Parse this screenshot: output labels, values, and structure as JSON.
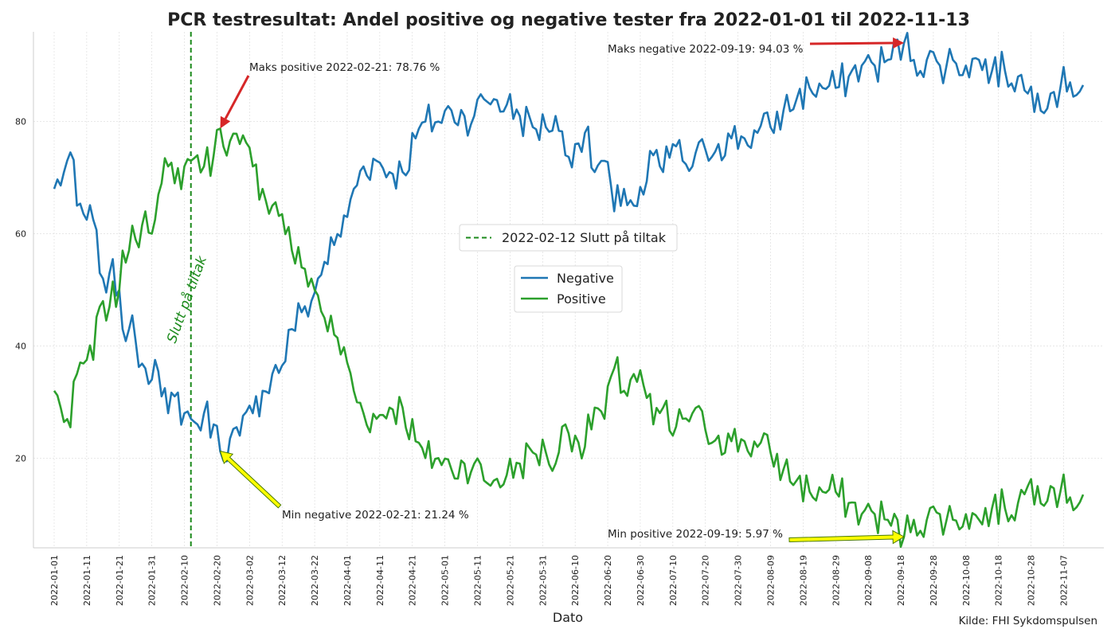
{
  "chart_data": {
    "type": "line",
    "title": "PCR testresultat: Andel positive og negative tester fra 2022-01-01 til 2022-11-13",
    "xlabel": "Dato",
    "ylabel": "",
    "x_range": [
      "2022-01-01",
      "2022-11-13"
    ],
    "ylim": [
      4,
      96
    ],
    "y_ticks": [
      20,
      40,
      60,
      80
    ],
    "x_ticks": [
      "2022-01-01",
      "2022-01-11",
      "2022-01-21",
      "2022-01-31",
      "2022-02-10",
      "2022-02-20",
      "2022-03-02",
      "2022-03-12",
      "2022-03-22",
      "2022-04-01",
      "2022-04-11",
      "2022-04-21",
      "2022-05-01",
      "2022-05-11",
      "2022-05-21",
      "2022-05-31",
      "2022-06-10",
      "2022-06-20",
      "2022-06-30",
      "2022-07-10",
      "2022-07-20",
      "2022-07-30",
      "2022-08-09",
      "2022-08-19",
      "2022-08-29",
      "2022-09-08",
      "2022-09-18",
      "2022-09-28",
      "2022-10-08",
      "2022-10-18",
      "2022-10-28",
      "2022-11-07"
    ],
    "grid": true,
    "legend_placement": "center",
    "source": "Kilde: FHI Sykdomspulsen",
    "series": [
      {
        "name": "Negative",
        "color": "#1f77b4",
        "key": "negative"
      },
      {
        "name": "Positive",
        "color": "#2ca02c",
        "key": "positive"
      }
    ],
    "anchors": {
      "negative": [
        [
          "2022-01-01",
          68
        ],
        [
          "2022-01-04",
          71
        ],
        [
          "2022-01-06",
          74.5
        ],
        [
          "2022-01-08",
          65
        ],
        [
          "2022-01-11",
          62.5
        ],
        [
          "2022-01-13",
          62.5
        ],
        [
          "2022-01-15",
          53
        ],
        [
          "2022-01-16",
          52
        ],
        [
          "2022-01-18",
          53
        ],
        [
          "2022-01-21",
          50
        ],
        [
          "2022-01-22",
          43
        ],
        [
          "2022-01-24",
          43
        ],
        [
          "2022-01-26",
          41
        ],
        [
          "2022-01-29",
          36
        ],
        [
          "2022-02-01",
          37.5
        ],
        [
          "2022-02-03",
          31
        ],
        [
          "2022-02-05",
          28
        ],
        [
          "2022-02-07",
          31
        ],
        [
          "2022-02-10",
          28
        ],
        [
          "2022-02-12",
          27
        ],
        [
          "2022-02-14",
          26
        ],
        [
          "2022-02-16",
          28
        ],
        [
          "2022-02-19",
          26
        ],
        [
          "2022-02-21",
          21.24
        ],
        [
          "2022-02-24",
          23.5
        ],
        [
          "2022-02-27",
          24
        ],
        [
          "2022-03-03",
          28
        ],
        [
          "2022-03-06",
          32
        ],
        [
          "2022-03-09",
          35
        ],
        [
          "2022-03-12",
          36.5
        ],
        [
          "2022-03-15",
          43
        ],
        [
          "2022-03-18",
          46
        ],
        [
          "2022-03-21",
          48
        ],
        [
          "2022-03-25",
          55
        ],
        [
          "2022-03-28",
          58
        ],
        [
          "2022-04-01",
          63
        ],
        [
          "2022-04-03",
          68
        ],
        [
          "2022-04-06",
          72
        ],
        [
          "2022-04-10",
          73
        ],
        [
          "2022-04-14",
          71
        ],
        [
          "2022-04-18",
          71
        ],
        [
          "2022-04-22",
          77
        ],
        [
          "2022-04-25",
          80
        ],
        [
          "2022-04-29",
          80
        ],
        [
          "2022-05-03",
          82
        ],
        [
          "2022-05-07",
          81
        ],
        [
          "2022-05-10",
          81
        ],
        [
          "2022-05-13",
          84
        ],
        [
          "2022-05-16",
          84
        ],
        [
          "2022-05-20",
          83
        ],
        [
          "2022-05-24",
          81
        ],
        [
          "2022-05-28",
          79
        ],
        [
          "2022-06-01",
          79
        ],
        [
          "2022-06-04",
          81
        ],
        [
          "2022-06-07",
          74
        ],
        [
          "2022-06-10",
          76
        ],
        [
          "2022-06-13",
          78
        ],
        [
          "2022-06-16",
          71
        ],
        [
          "2022-06-19",
          73
        ],
        [
          "2022-06-22",
          64
        ],
        [
          "2022-06-25",
          68
        ],
        [
          "2022-06-28",
          65
        ],
        [
          "2022-07-01",
          67
        ],
        [
          "2022-07-04",
          74
        ],
        [
          "2022-07-07",
          71
        ],
        [
          "2022-07-10",
          76
        ],
        [
          "2022-07-13",
          73
        ],
        [
          "2022-07-16",
          72
        ],
        [
          "2022-07-20",
          75
        ],
        [
          "2022-07-24",
          76
        ],
        [
          "2022-07-28",
          77
        ],
        [
          "2022-08-01",
          77
        ],
        [
          "2022-08-05",
          78
        ],
        [
          "2022-08-09",
          79
        ],
        [
          "2022-08-13",
          82
        ],
        [
          "2022-08-17",
          84
        ],
        [
          "2022-08-21",
          86
        ],
        [
          "2022-08-25",
          86
        ],
        [
          "2022-08-29",
          86
        ],
        [
          "2022-09-02",
          88
        ],
        [
          "2022-09-06",
          90
        ],
        [
          "2022-09-10",
          90
        ],
        [
          "2022-09-14",
          91
        ],
        [
          "2022-09-19",
          94.03
        ],
        [
          "2022-09-22",
          91
        ],
        [
          "2022-09-26",
          91
        ],
        [
          "2022-09-30",
          90
        ],
        [
          "2022-10-04",
          91
        ],
        [
          "2022-10-08",
          90
        ],
        [
          "2022-10-12",
          91
        ],
        [
          "2022-10-16",
          89
        ],
        [
          "2022-10-20",
          89
        ],
        [
          "2022-10-24",
          88
        ],
        [
          "2022-10-27",
          85
        ],
        [
          "2022-10-30",
          85
        ],
        [
          "2022-11-03",
          85
        ],
        [
          "2022-11-06",
          86
        ],
        [
          "2022-11-09",
          87
        ],
        [
          "2022-11-13",
          86.5
        ]
      ],
      "positive": [
        [
          "2022-01-01",
          32
        ],
        [
          "2022-01-03",
          29
        ],
        [
          "2022-01-06",
          25.5
        ],
        [
          "2022-01-08",
          35
        ],
        [
          "2022-01-11",
          37.5
        ],
        [
          "2022-01-13",
          37.5
        ],
        [
          "2022-01-15",
          47
        ],
        [
          "2022-01-16",
          48
        ],
        [
          "2022-01-18",
          47
        ],
        [
          "2022-01-21",
          50
        ],
        [
          "2022-01-22",
          57
        ],
        [
          "2022-01-24",
          57
        ],
        [
          "2022-01-26",
          59
        ],
        [
          "2022-01-29",
          64
        ],
        [
          "2022-02-01",
          62.5
        ],
        [
          "2022-02-03",
          69
        ],
        [
          "2022-02-05",
          72
        ],
        [
          "2022-02-07",
          69
        ],
        [
          "2022-02-10",
          72
        ],
        [
          "2022-02-12",
          73
        ],
        [
          "2022-02-14",
          74
        ],
        [
          "2022-02-16",
          72
        ],
        [
          "2022-02-19",
          74
        ],
        [
          "2022-02-21",
          78.76
        ],
        [
          "2022-02-24",
          76.5
        ],
        [
          "2022-02-27",
          76
        ],
        [
          "2022-03-03",
          72
        ],
        [
          "2022-03-06",
          68
        ],
        [
          "2022-03-09",
          65
        ],
        [
          "2022-03-12",
          63.5
        ],
        [
          "2022-03-15",
          57
        ],
        [
          "2022-03-18",
          54
        ],
        [
          "2022-03-21",
          52
        ],
        [
          "2022-03-25",
          45
        ],
        [
          "2022-03-28",
          42
        ],
        [
          "2022-04-01",
          37
        ],
        [
          "2022-04-03",
          32
        ],
        [
          "2022-04-06",
          28
        ],
        [
          "2022-04-10",
          27
        ],
        [
          "2022-04-14",
          29
        ],
        [
          "2022-04-18",
          29
        ],
        [
          "2022-04-22",
          23
        ],
        [
          "2022-04-25",
          20
        ],
        [
          "2022-04-29",
          20
        ],
        [
          "2022-05-03",
          18
        ],
        [
          "2022-05-07",
          19
        ],
        [
          "2022-05-10",
          19
        ],
        [
          "2022-05-13",
          16
        ],
        [
          "2022-05-16",
          16
        ],
        [
          "2022-05-20",
          17
        ],
        [
          "2022-05-24",
          19
        ],
        [
          "2022-05-28",
          21
        ],
        [
          "2022-06-01",
          21
        ],
        [
          "2022-06-04",
          19
        ],
        [
          "2022-06-07",
          26
        ],
        [
          "2022-06-10",
          24
        ],
        [
          "2022-06-13",
          22
        ],
        [
          "2022-06-16",
          29
        ],
        [
          "2022-06-19",
          27
        ],
        [
          "2022-06-22",
          36
        ],
        [
          "2022-06-25",
          32
        ],
        [
          "2022-06-28",
          35
        ],
        [
          "2022-07-01",
          33
        ],
        [
          "2022-07-04",
          26
        ],
        [
          "2022-07-07",
          29
        ],
        [
          "2022-07-10",
          24
        ],
        [
          "2022-07-13",
          27
        ],
        [
          "2022-07-16",
          28
        ],
        [
          "2022-07-20",
          25
        ],
        [
          "2022-07-24",
          24
        ],
        [
          "2022-07-28",
          23
        ],
        [
          "2022-08-01",
          23
        ],
        [
          "2022-08-05",
          22
        ],
        [
          "2022-08-09",
          21
        ],
        [
          "2022-08-13",
          18
        ],
        [
          "2022-08-17",
          16
        ],
        [
          "2022-08-21",
          14
        ],
        [
          "2022-08-25",
          14
        ],
        [
          "2022-08-29",
          14
        ],
        [
          "2022-09-02",
          12
        ],
        [
          "2022-09-06",
          10
        ],
        [
          "2022-09-10",
          10
        ],
        [
          "2022-09-14",
          9
        ],
        [
          "2022-09-19",
          5.97
        ],
        [
          "2022-09-22",
          9
        ],
        [
          "2022-09-26",
          9
        ],
        [
          "2022-09-30",
          10
        ],
        [
          "2022-10-04",
          9
        ],
        [
          "2022-10-08",
          10
        ],
        [
          "2022-10-12",
          9
        ],
        [
          "2022-10-16",
          11
        ],
        [
          "2022-10-20",
          11
        ],
        [
          "2022-10-24",
          12
        ],
        [
          "2022-10-27",
          15
        ],
        [
          "2022-10-30",
          15
        ],
        [
          "2022-11-03",
          15
        ],
        [
          "2022-11-06",
          14
        ],
        [
          "2022-11-09",
          13
        ],
        [
          "2022-11-13",
          13.5
        ]
      ]
    },
    "vline": {
      "date": "2022-02-12",
      "label": "2022-02-12 Slutt på tiltak",
      "text": "Slutt på tiltak",
      "color": "#1b8a1b"
    },
    "annotations": [
      {
        "key": "max_pos",
        "text": "Maks positive 2022-02-21: 78.76 %",
        "date": "2022-02-21",
        "value": 78.76,
        "arrow_color": "#d62728"
      },
      {
        "key": "max_neg",
        "text": "Maks negative 2022-09-19: 94.03 %",
        "date": "2022-09-19",
        "value": 94.03,
        "arrow_color": "#d62728"
      },
      {
        "key": "min_neg",
        "text": "Min negative 2022-02-21: 21.24 %",
        "date": "2022-02-21",
        "value": 21.24,
        "arrow_color": "#ffff00"
      },
      {
        "key": "min_pos",
        "text": "Min positive 2022-09-19: 5.97 %",
        "date": "2022-09-19",
        "value": 5.97,
        "arrow_color": "#ffff00"
      }
    ]
  }
}
